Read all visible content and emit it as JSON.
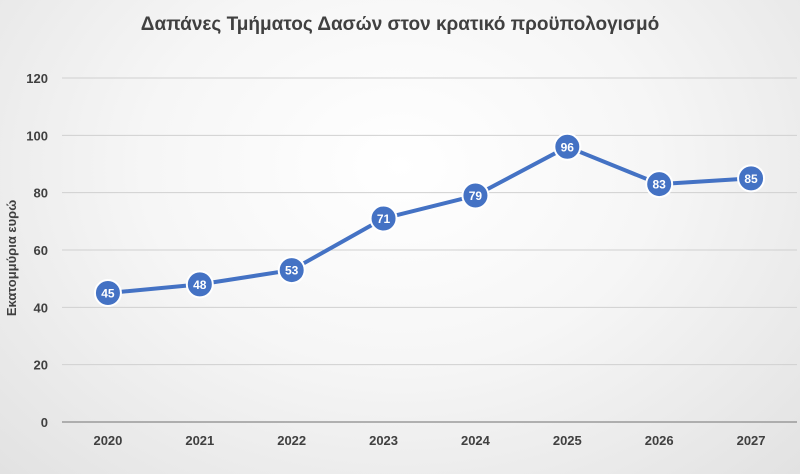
{
  "chart_data": {
    "type": "line",
    "title": "Δαπάνες Τμήματος Δασών στον κρατικό προϋπολογισμό",
    "xlabel": "",
    "ylabel": "Εκατομμύρια  ευρώ",
    "categories": [
      "2020",
      "2021",
      "2022",
      "2023",
      "2024",
      "2025",
      "2026",
      "2027"
    ],
    "series": [
      {
        "values": [
          45,
          48,
          53,
          71,
          79,
          96,
          83,
          85
        ],
        "color": "#4472C4"
      }
    ],
    "ylim": [
      0,
      120
    ],
    "yticks": [
      0,
      20,
      40,
      60,
      80,
      100,
      120
    ],
    "grid": true,
    "legend": "none",
    "data_labels": true
  }
}
